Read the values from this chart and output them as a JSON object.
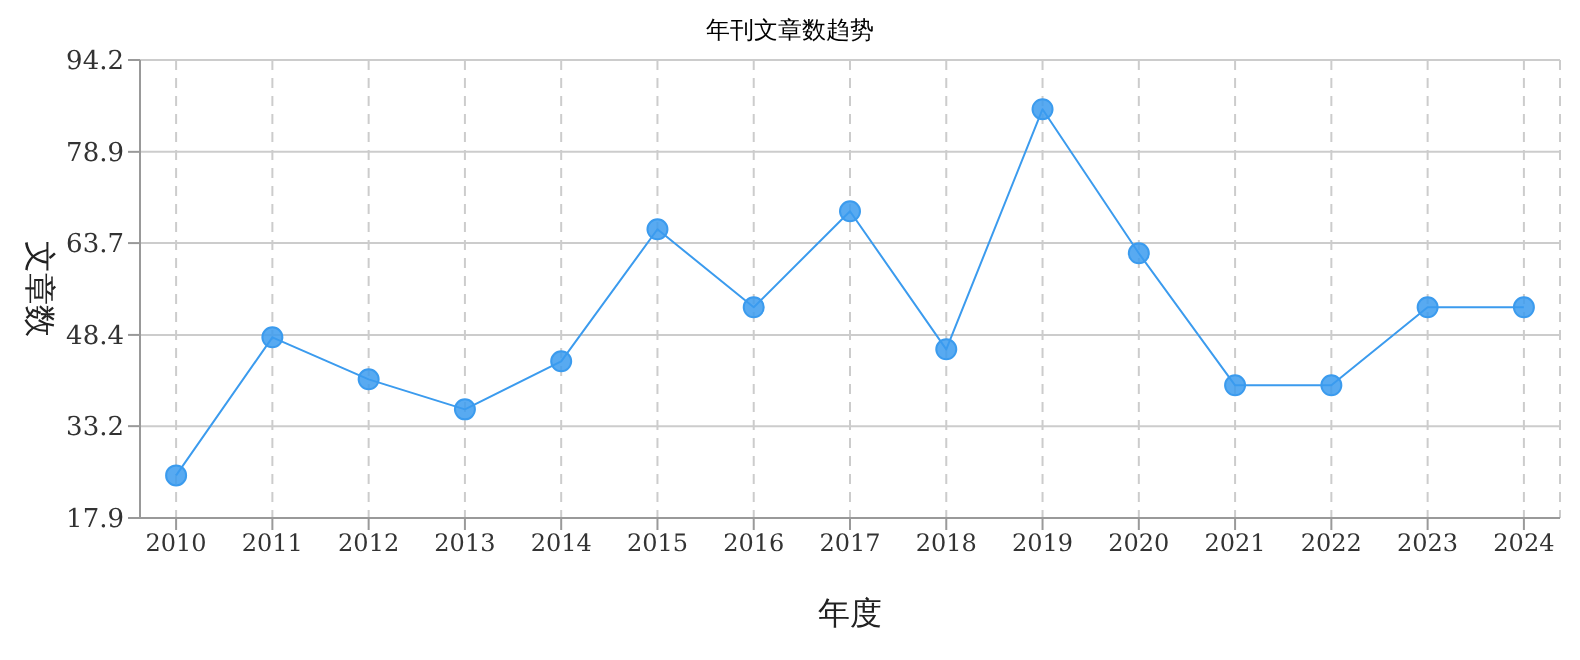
{
  "chart_data": {
    "type": "line",
    "title": "年刊文章数趋势",
    "xlabel": "年度",
    "ylabel": "文章数",
    "categories": [
      "2010",
      "2011",
      "2012",
      "2013",
      "2014",
      "2015",
      "2016",
      "2017",
      "2018",
      "2019",
      "2020",
      "2021",
      "2022",
      "2023",
      "2024"
    ],
    "series": [
      {
        "color": "#3b9bee",
        "values": [
          25,
          48,
          41,
          36,
          44,
          66,
          53,
          69,
          46,
          86,
          62,
          40,
          40,
          53,
          53
        ]
      }
    ],
    "ylim": [
      17.9,
      94.2
    ],
    "yticks": [
      17.9,
      33.2,
      48.4,
      63.7,
      78.9,
      94.2
    ],
    "grid": true,
    "marker": "circle",
    "line_style": "solid"
  }
}
